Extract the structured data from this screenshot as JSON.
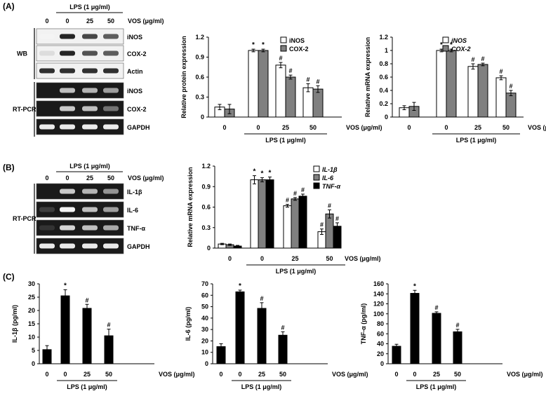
{
  "panel_labels": [
    "(A)",
    "(B)",
    "(C)"
  ],
  "blots": {
    "A": {
      "lps_label": "LPS (1 μg/ml)",
      "vos_label": "VOS (μg/ml)",
      "doses": [
        "0",
        "0",
        "25",
        "50"
      ],
      "sections": [
        {
          "name": "WB",
          "rows": [
            "iNOS",
            "COX-2",
            "Actin"
          ]
        },
        {
          "name": "RT-PCR",
          "rows": [
            "iNOS",
            "COX-2",
            "GAPDH"
          ]
        }
      ]
    },
    "B": {
      "lps_label": "LPS (1 μg/ml)",
      "vos_label": "VOS (μg/ml)",
      "doses": [
        "0",
        "0",
        "25",
        "50"
      ],
      "sections": [
        {
          "name": "RT-PCR",
          "rows": [
            "IL-1β",
            "IL-6",
            "TNF-α",
            "GAPDH"
          ]
        }
      ]
    }
  },
  "chart_data": [
    {
      "id": "A-protein",
      "type": "bar",
      "categories": [
        "0",
        "0",
        "25",
        "50"
      ],
      "group_label": "LPS (1 μg/ml)",
      "xlabel": "VOS (μg/ml)",
      "ylabel": "Relative protein expression",
      "ylim": [
        0,
        1.2
      ],
      "yticks": [
        "0",
        "0.3",
        "0.6",
        "0.9",
        "1.2"
      ],
      "legend_position": "top-right",
      "series": [
        {
          "name": "iNOS",
          "values": [
            0.15,
            1.0,
            0.78,
            0.44
          ],
          "errors": [
            0.04,
            0.02,
            0.04,
            0.06
          ],
          "marks": [
            "",
            "*",
            "#",
            "#"
          ],
          "color": "#ffffff"
        },
        {
          "name": "COX-2",
          "values": [
            0.12,
            1.0,
            0.6,
            0.42
          ],
          "errors": [
            0.07,
            0.02,
            0.03,
            0.05
          ],
          "marks": [
            "",
            "*",
            "#",
            "#"
          ],
          "color": "#808080"
        }
      ]
    },
    {
      "id": "A-mrna",
      "type": "bar",
      "categories": [
        "0",
        "0",
        "25",
        "50"
      ],
      "group_label": "LPS (1 μg/ml)",
      "xlabel": "VOS (μg/ml)",
      "ylabel": "Relative mRNA expression",
      "ylim": [
        0,
        1.2
      ],
      "yticks": [
        "0",
        "0.2",
        "0.4",
        "0.6",
        "0.8",
        "1",
        "1.2"
      ],
      "legend_position": "top-right",
      "series": [
        {
          "name": "iNOS",
          "values": [
            0.14,
            1.0,
            0.76,
            0.59
          ],
          "errors": [
            0.03,
            0.02,
            0.04,
            0.03
          ],
          "marks": [
            "",
            "*",
            "#",
            "#"
          ],
          "color": "#ffffff"
        },
        {
          "name": "COX-2",
          "values": [
            0.16,
            1.0,
            0.79,
            0.36
          ],
          "errors": [
            0.06,
            0.02,
            0.02,
            0.04
          ],
          "marks": [
            "",
            "*",
            "#",
            "#"
          ],
          "color": "#808080"
        }
      ]
    },
    {
      "id": "B-mrna",
      "type": "bar",
      "categories": [
        "0",
        "0",
        "25",
        "50"
      ],
      "group_label": "LPS (1 μg/ml)",
      "xlabel": "VOS (μg/ml)",
      "ylabel": "Relative mRNA expression",
      "ylim": [
        0,
        1.2
      ],
      "yticks": [
        "0",
        "0.3",
        "0.6",
        "0.9",
        "1.2"
      ],
      "legend_position": "top-right",
      "series": [
        {
          "name": "IL-1β",
          "values": [
            0.06,
            1.0,
            0.62,
            0.24
          ],
          "errors": [
            0.01,
            0.06,
            0.02,
            0.04
          ],
          "marks": [
            "",
            "*",
            "#",
            "#"
          ],
          "color": "#ffffff"
        },
        {
          "name": "IL-6",
          "values": [
            0.05,
            1.0,
            0.72,
            0.5
          ],
          "errors": [
            0.01,
            0.03,
            0.02,
            0.06
          ],
          "marks": [
            "",
            "*",
            "#",
            "#"
          ],
          "color": "#808080"
        },
        {
          "name": "TNF-α",
          "values": [
            0.03,
            1.0,
            0.76,
            0.32
          ],
          "errors": [
            0.01,
            0.04,
            0.03,
            0.05
          ],
          "marks": [
            "",
            "*",
            "#",
            "#"
          ],
          "color": "#000000"
        }
      ]
    },
    {
      "id": "C-il1b",
      "type": "bar",
      "categories": [
        "0",
        "0",
        "25",
        "50"
      ],
      "group_label": "LPS (1 μg/ml)",
      "xlabel": "VOS (μg/ml)",
      "ylabel": "IL-1β (pg/ml)",
      "ylim": [
        0,
        30
      ],
      "yticks": [
        "0",
        "5",
        "10",
        "15",
        "20",
        "25",
        "30"
      ],
      "series": [
        {
          "values": [
            5.3,
            25.5,
            20.8,
            10.5
          ],
          "errors": [
            1.5,
            2.3,
            1.5,
            2.5
          ],
          "marks": [
            "",
            "*",
            "#",
            "#"
          ],
          "color": "#000000"
        }
      ]
    },
    {
      "id": "C-il6",
      "type": "bar",
      "categories": [
        "0",
        "0",
        "25",
        "50"
      ],
      "group_label": "LPS (1 μg/ml)",
      "xlabel": "VOS (μg/ml)",
      "ylabel": "IL-6 (pg/ml)",
      "ylim": [
        0,
        70
      ],
      "yticks": [
        "0",
        "10",
        "20",
        "30",
        "40",
        "50",
        "60",
        "70"
      ],
      "series": [
        {
          "values": [
            15,
            63,
            48.5,
            25
          ],
          "errors": [
            2.5,
            1.5,
            5,
            3
          ],
          "marks": [
            "",
            "*",
            "#",
            "#"
          ],
          "color": "#000000"
        }
      ]
    },
    {
      "id": "C-tnfa",
      "type": "bar",
      "categories": [
        "0",
        "0",
        "25",
        "50"
      ],
      "group_label": "LPS (1 μg/ml)",
      "xlabel": "VOS (μg/ml)",
      "ylabel": "TNF-α (pg/ml)",
      "ylim": [
        0,
        160
      ],
      "yticks": [
        "0",
        "20",
        "40",
        "60",
        "80",
        "100",
        "120",
        "140",
        "160"
      ],
      "series": [
        {
          "values": [
            35,
            141,
            101,
            64
          ],
          "errors": [
            4,
            6,
            3,
            5
          ],
          "marks": [
            "",
            "*",
            "#",
            "#"
          ],
          "color": "#000000"
        }
      ]
    }
  ]
}
